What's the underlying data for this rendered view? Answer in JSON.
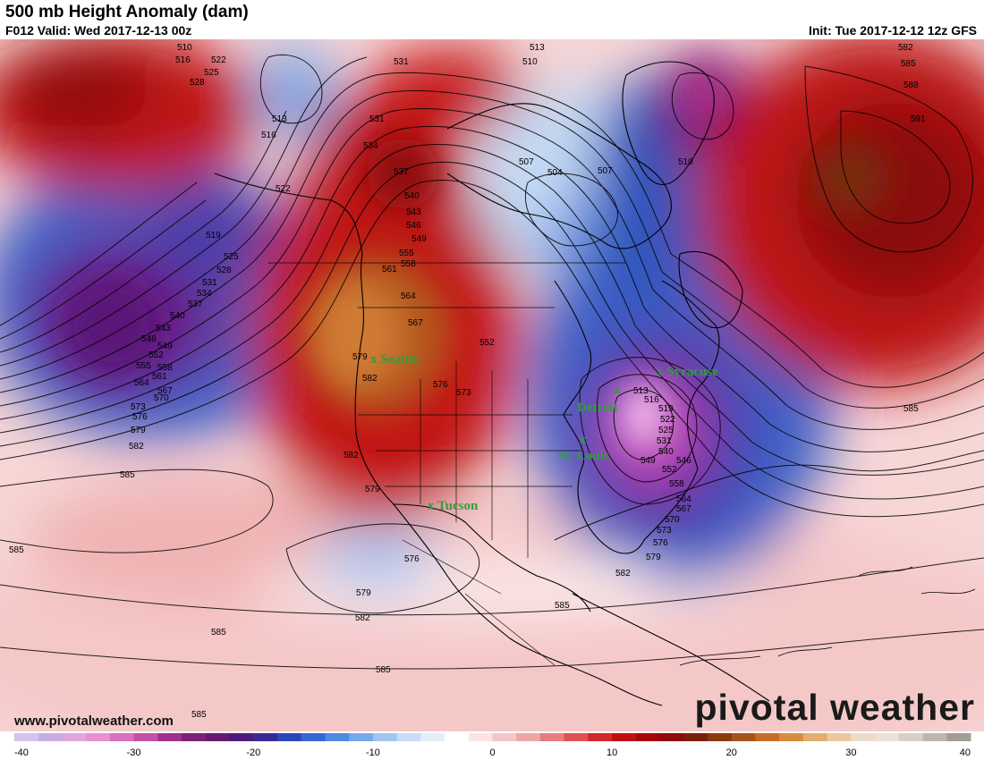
{
  "header": {
    "title": "500 mb Height Anomaly (dam)",
    "valid": "F012 Valid: Wed 2017-12-13 00z",
    "init": "Init: Tue 2017-12-12 12z GFS"
  },
  "footer": {
    "url": "www.pivotalweather.com",
    "brand": "pivotal weather"
  },
  "cities": [
    {
      "label": "x Seattle"
    },
    {
      "label": "x Syracuse"
    },
    {
      "label": "Detroit"
    },
    {
      "label": "St. Louis"
    },
    {
      "label": "x Tucson"
    }
  ],
  "colorbar": {
    "ticks": [
      "-40",
      "-30",
      "-20",
      "-10",
      "0",
      "10",
      "20",
      "30",
      "40"
    ],
    "colors": [
      "#d4c4ec",
      "#c5aee3",
      "#e0a7dd",
      "#e991cf",
      "#d870bd",
      "#c050a8",
      "#a03090",
      "#801f78",
      "#651a70",
      "#4d1a7c",
      "#3a2a96",
      "#2b46b8",
      "#3468d0",
      "#4e8ae0",
      "#76a8ec",
      "#a2c4f2",
      "#c8dcf6",
      "#e4eefa",
      "#ffffff",
      "#fbe3e3",
      "#f5c6c6",
      "#eea5a5",
      "#e67d7d",
      "#dd5252",
      "#d22a2a",
      "#bf1010",
      "#a40808",
      "#8d0c0c",
      "#7a1f0a",
      "#8a3a0c",
      "#a6551a",
      "#c46f28",
      "#d98c40",
      "#e4ac6e",
      "#ecc8a0",
      "#eddcc4",
      "#e8e3d6",
      "#d6d0c6",
      "#bcb6ae",
      "#a39d97"
    ]
  },
  "contour_labels": [
    "510",
    "516",
    "522",
    "525",
    "528",
    "513",
    "516",
    "522",
    "519",
    "525",
    "528",
    "531",
    "534",
    "537",
    "540",
    "543",
    "546",
    "549",
    "552",
    "555",
    "558",
    "561",
    "564",
    "567",
    "570",
    "573",
    "576",
    "579",
    "582",
    "585",
    "531",
    "531",
    "534",
    "537",
    "540",
    "543",
    "546",
    "549",
    "555",
    "558",
    "561",
    "564",
    "567",
    "579",
    "582",
    "576",
    "573",
    "552",
    "510",
    "513",
    "507",
    "504",
    "507",
    "510",
    "582",
    "585",
    "588",
    "591",
    "585",
    "513",
    "516",
    "519",
    "522",
    "525",
    "531",
    "540",
    "546",
    "549",
    "552",
    "558",
    "564",
    "567",
    "570",
    "573",
    "576",
    "579",
    "582",
    "585",
    "582",
    "579",
    "576",
    "579",
    "582",
    "585",
    "585",
    "585",
    "585"
  ],
  "colors": {
    "positive_max": "#8b0a0a",
    "negative_max": "#6a1a80",
    "city_label": "#2e9e3e"
  }
}
